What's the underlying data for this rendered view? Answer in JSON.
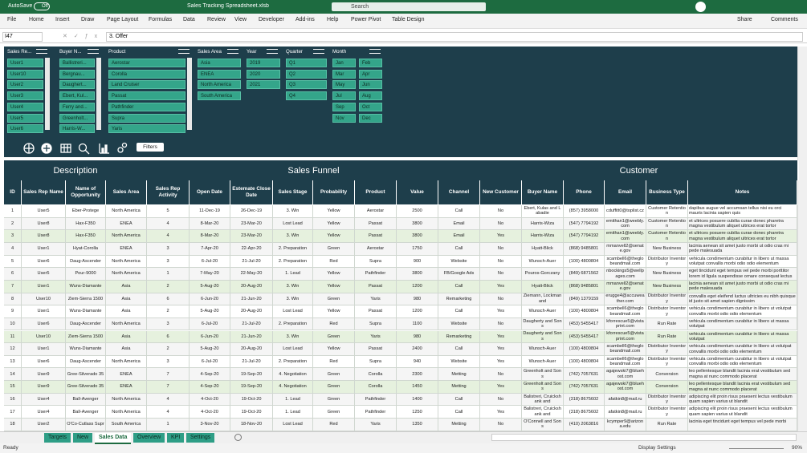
{
  "titlebar": {
    "autosave": "AutoSave",
    "toggle": "Off",
    "filename": "Sales Tracking Spreadsheet.xlsb",
    "search": "Search"
  },
  "menu": [
    "File",
    "Home",
    "Insert",
    "Draw",
    "Page Layout",
    "Formulas",
    "Data",
    "Review",
    "View",
    "Developer",
    "Add-ins",
    "Help",
    "Power Pivot",
    "Table Design"
  ],
  "menu_right": [
    "Share",
    "Comments"
  ],
  "formula_bar": {
    "name_box": "I47",
    "formula": "3. Offer"
  },
  "slicers": [
    {
      "title": "Sales Re...",
      "items": [
        "User1",
        "User10",
        "User2",
        "User3",
        "User4",
        "User5",
        "User6"
      ]
    },
    {
      "title": "Buyer N...",
      "items": [
        "Ballistreri...",
        "Bergnau...",
        "Daughert...",
        "Ebert, Kul...",
        "Ferry and...",
        "Greenholt...",
        "Harris-W..."
      ]
    },
    {
      "title": "Product",
      "items": [
        "Aerostar",
        "Corolla",
        "Land Cruiser",
        "Passat",
        "Pathfinder",
        "Supra",
        "Yaris"
      ]
    },
    {
      "title": "Sales Area",
      "items": [
        "Asia",
        "ENEA",
        "North America",
        "South America"
      ]
    },
    {
      "title": "Year",
      "items": [
        "2019",
        "2020",
        "2021"
      ]
    },
    {
      "title": "Quarter",
      "items": [
        "Q1",
        "Q2",
        "Q3",
        "Q4"
      ]
    },
    {
      "title": "Month",
      "items": [
        "Jan",
        "Feb",
        "Mar",
        "Apr",
        "May",
        "Jun",
        "Jul",
        "Aug",
        "Sep",
        "Oct",
        "Nov",
        "Dec"
      ]
    }
  ],
  "filters_button": "Filters",
  "table": {
    "sections": [
      "Description",
      "Sales Funnel",
      "Customer"
    ],
    "headers": [
      "ID",
      "Sales Rep Name",
      "Name of Opportunity",
      "Sales Area",
      "Sales Rep Activity",
      "Open Date",
      "Estemate Close Date",
      "Sales Stage",
      "Probability",
      "Product",
      "Value",
      "Channel",
      "New Customer",
      "Buyer Name",
      "Phone",
      "Email",
      "Business Type",
      "Notes"
    ],
    "rows": [
      [
        "1",
        "User5",
        "Eber-Protege",
        "North America",
        "5",
        "11-Dec-19",
        "26-Dec-19",
        "3. Win",
        "Yellow",
        "Aerostar",
        "2500",
        "Call",
        "No",
        "Ebert, Kulas and Labadie",
        "(857) 3958000",
        "cduffitt0@toplist.cz",
        "Customer Retention",
        "dapibus augue vel accumsan tellus nisi eu orci mauris lacinia sapien quis"
      ],
      [
        "2",
        "User8",
        "Hax-F350",
        "ENEA",
        "4",
        "8-Mar-20",
        "23-Mar-20",
        "Lost Lead",
        "Yellow",
        "Passat",
        "3800",
        "Email",
        "No",
        "Harris-Wiza",
        "(547) 7794192",
        "emithan1@weebly.com",
        "Customer Retention",
        "et ultrices posuere cubilia curae donec pharetra magna vestibulum aliquet ultrices erat tortor"
      ],
      [
        "3",
        "User8",
        "Hax-F350",
        "North America",
        "4",
        "8-Mar-20",
        "23-Mar-20",
        "3. Win",
        "Yellow",
        "Passat",
        "3800",
        "Email",
        "Yes",
        "Harris-Wiza",
        "(547) 7794192",
        "emithan1@weebly.com",
        "Customer Retention",
        "et ultrices posuere cubilia curae donec pharetra magna vestibulum aliquet ultrices erat tortor"
      ],
      [
        "4",
        "User1",
        "Hyat-Corolla",
        "ENEA",
        "3",
        "7-Apr-20",
        "22-Apr-20",
        "2. Preparation",
        "Green",
        "Aerostar",
        "1750",
        "Call",
        "No",
        "Hyatt-Blick",
        "(868) 9485801",
        "mmanvell2@senate.gov",
        "New Business",
        "lacinia aenean sit amet justo morbi ut odio cras mi pede malesuada"
      ],
      [
        "5",
        "User6",
        "Daug-Ascender",
        "North America",
        "3",
        "6-Jul-20",
        "21-Jul-20",
        "2. Preparation",
        "Red",
        "Supra",
        "900",
        "Website",
        "No",
        "Wunsch-Auer",
        "(100) 4800804",
        "scambell6@theglobeandmail.com",
        "Distributor Inventory",
        "vehicula condimentum curabitur in libero ut massa volutpat convallis morbi odio odio elementum"
      ],
      [
        "6",
        "User5",
        "Pour-9000",
        "North America",
        "1",
        "7-May-20",
        "22-May-20",
        "1. Lead",
        "Yellow",
        "Pathfinder",
        "3800",
        "FB/Google Ads",
        "No",
        "Pouros-Gorczany",
        "(849) 6871562",
        "nbockings5@wellpages.com",
        "New Business",
        "eget tincidunt eget tempus vel pede morbi porttitor lorem id ligula suspendisse ornare consequat lectus"
      ],
      [
        "7",
        "User1",
        "Wuns-Diamante",
        "Asia",
        "2",
        "5-Aug-20",
        "20-Aug-20",
        "3. Win",
        "Yellow",
        "Passat",
        "1200",
        "Call",
        "Yes",
        "Hyatt-Blick",
        "(868) 9485801",
        "mmanvell2@senate.gov",
        "New Business",
        "lacinia aenean sit amet justo morbi ut odio cras mi pede malesuada"
      ],
      [
        "8",
        "User10",
        "Ziem-Sierra 1500",
        "Asia",
        "6",
        "6-Jun-20",
        "21-Jun-20",
        "3. Win",
        "Green",
        "Yaris",
        "980",
        "Remarketing",
        "No",
        "Ziemann, Lockman and",
        "(849) 1379159",
        "erugge4@accuweather.com",
        "Distributor Inventory",
        "convallis eget eleifend luctus ultricies eu nibh quisque id justo sit amet sapien dignissim"
      ],
      [
        "9",
        "User1",
        "Wuns-Diamante",
        "Asia",
        "2",
        "5-Aug-20",
        "20-Aug-20",
        "Lost Lead",
        "Yellow",
        "Passat",
        "1200",
        "Call",
        "Yes",
        "Wunsch-Auer",
        "(100) 4800804",
        "scambell6@theglobeandmail.com",
        "Distributor Inventory",
        "vehicula condimentum curabitur in libero ut volutpat convallis morbi odio odio elementum"
      ],
      [
        "10",
        "User6",
        "Daug-Ascender",
        "North America",
        "3",
        "6-Jul-20",
        "21-Jul-20",
        "2. Preparation",
        "Red",
        "Supra",
        "1100",
        "Website",
        "No",
        "Daugherty and Sons",
        "(453) 5455417",
        "kforrescue5@vistaprint.com",
        "Run Rate",
        "vehicula condimentum curabitur in libero ut massa volutpat"
      ],
      [
        "11",
        "User10",
        "Ziem-Sierra 1500",
        "Asia",
        "6",
        "6-Jun-20",
        "21-Jun-20",
        "3. Win",
        "Green",
        "Yaris",
        "980",
        "Remarketing",
        "Yes",
        "Daugherty and Sons",
        "(453) 5455417",
        "kforrescue5@vistaprint.com",
        "Run Rate",
        "vehicula condimentum curabitur in libero ut massa volutpat"
      ],
      [
        "12",
        "User1",
        "Wuns-Diamante",
        "Asia",
        "2",
        "5-Aug-20",
        "20-Aug-20",
        "Lost Lead",
        "Yellow",
        "Passat",
        "2400",
        "Call",
        "Yes",
        "Wunsch-Auer",
        "(100) 4800804",
        "scambell6@theglobeandmail.com",
        "Distributor Inventory",
        "vehicula condimentum curabitur in libero ut volutpat convallis morbi odio odio elementum"
      ],
      [
        "13",
        "User6",
        "Daug-Ascender",
        "North America",
        "3",
        "6-Jul-20",
        "21-Jul-20",
        "2. Preparation",
        "Red",
        "Supra",
        "940",
        "Website",
        "Yes",
        "Wunsch-Auer",
        "(100) 4800804",
        "scambell6@theglobeandmail.com",
        "Distributor Inventory",
        "vehicula condimentum curabitur in libero ut volutpat convallis morbi odio odio elementum"
      ],
      [
        "14",
        "User9",
        "Gree-Silverado 35",
        "ENEA",
        "7",
        "4-Sep-20",
        "19-Sep-20",
        "4. Negotiation",
        "Green",
        "Corolla",
        "2300",
        "Metting",
        "No",
        "Greenholt and Sons",
        "(742) 7057631",
        "agajewski7@bluehost.com",
        "Conversion",
        "leo pellentesque blandit lacinia erat vestibulum sed magna at nunc commodo placerat"
      ],
      [
        "15",
        "User9",
        "Gree-Silverado 35",
        "ENEA",
        "7",
        "4-Sep-20",
        "19-Sep-20",
        "4. Negotiation",
        "Green",
        "Corolla",
        "1450",
        "Metting",
        "Yes",
        "Greenholt and Sons",
        "(742) 7057631",
        "agajewski7@bluehost.com",
        "Conversion",
        "leo pellentesque blandit lacinia erat vestibulum sed magna at nunc commodo placerat"
      ],
      [
        "16",
        "User4",
        "Ball-Avenger",
        "North America",
        "4",
        "4-Oct-20",
        "19-Oct-20",
        "1. Lead",
        "Green",
        "Pathfinder",
        "1400",
        "Call",
        "No",
        "Balistreri, Cruickshank and",
        "(318) 8675602",
        "afatkin8@mail.ru",
        "Distributor Inventory",
        "adipiscing elit proin risus praesent lectus vestibulum quam sapien varius ut blandit"
      ],
      [
        "17",
        "User4",
        "Ball-Avenger",
        "North America",
        "4",
        "4-Oct-20",
        "19-Oct-20",
        "1. Lead",
        "Green",
        "Pathfinder",
        "1250",
        "Call",
        "Yes",
        "Balistreri, Cruickshank and",
        "(318) 8675602",
        "afatkin8@mail.ru",
        "Distributor Inventory",
        "adipiscing elit proin risus praesent lectus vestibulum quam sapien varius ut blandit"
      ],
      [
        "18",
        "User2",
        "O'Co-Cutlass Supr",
        "South America",
        "1",
        "3-Nov-20",
        "18-Nov-20",
        "Lost Lead",
        "Red",
        "Yaris",
        "1350",
        "Metting",
        "No",
        "O'Connell and Sons",
        "(410) 2063816",
        "kcymper9@arizona.edu",
        "Run Rate",
        "lacinia eget tincidunt eget tempus vel pede morbi"
      ]
    ]
  },
  "sheet_tabs": [
    "Targets",
    "New",
    "Sales Data",
    "Overview",
    "KPI",
    "Settings"
  ],
  "active_tab": "Sales Data",
  "status": {
    "ready": "Ready",
    "display_settings": "Display Settings",
    "zoom": "90%"
  }
}
